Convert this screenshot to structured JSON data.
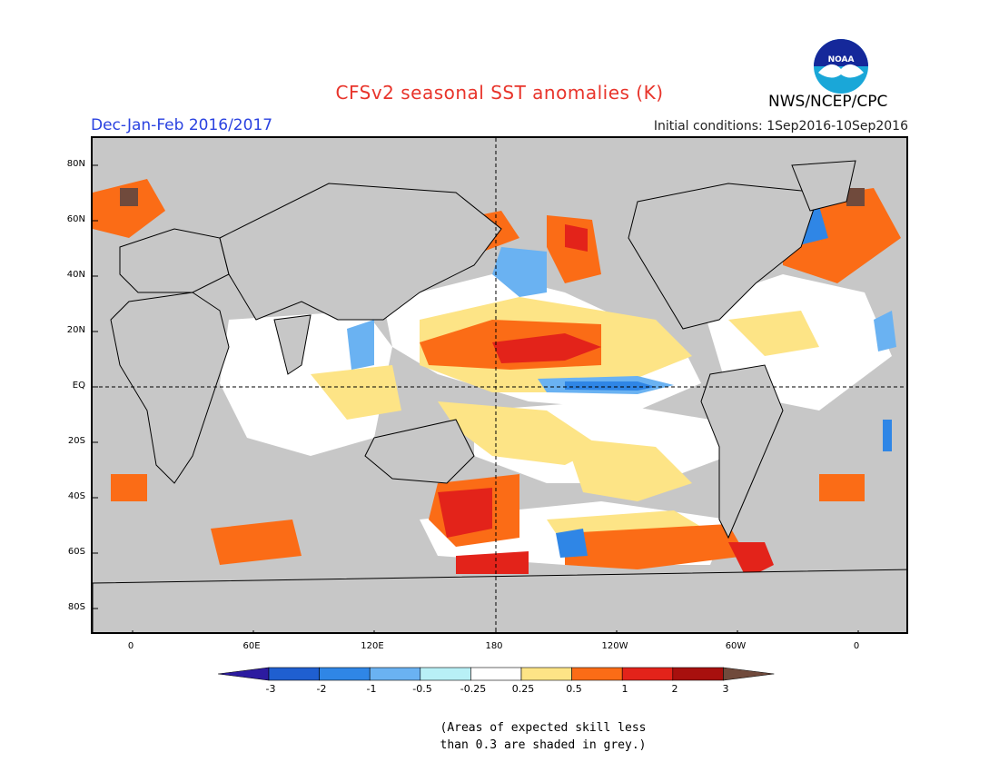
{
  "header": {
    "title": "CFSv2 seasonal SST anomalies (K)",
    "season": "Dec-Jan-Feb 2016/2017",
    "initial_conditions": "Initial conditions: 1Sep2016-10Sep2016",
    "agency": "NWS/NCEP/CPC",
    "logo_text": "NOAA"
  },
  "axes": {
    "lat_labels": [
      "80N",
      "60N",
      "40N",
      "20N",
      "EQ",
      "20S",
      "40S",
      "60S",
      "80S"
    ],
    "lon_labels": [
      "0",
      "60E",
      "120E",
      "180",
      "120W",
      "60W",
      "0"
    ]
  },
  "colorbar": {
    "labels": [
      "-3",
      "-2",
      "-1",
      "-0.5",
      "-0.25",
      "0.25",
      "0.5",
      "1",
      "2",
      "3"
    ],
    "colors": [
      "#2c1ba0",
      "#1f5fd0",
      "#2f86e6",
      "#6ab2f2",
      "#b8f0f6",
      "#ffffff",
      "#fde486",
      "#fb6c16",
      "#e3231a",
      "#a8100e",
      "#704a3c"
    ]
  },
  "note": {
    "line1": "(Areas of expected skill less",
    "line2": "than 0.3 are shaded in grey.)"
  },
  "colors": {
    "title": "#e8342b",
    "season": "#2a42e0",
    "skill_mask": "#c7c7c7"
  }
}
